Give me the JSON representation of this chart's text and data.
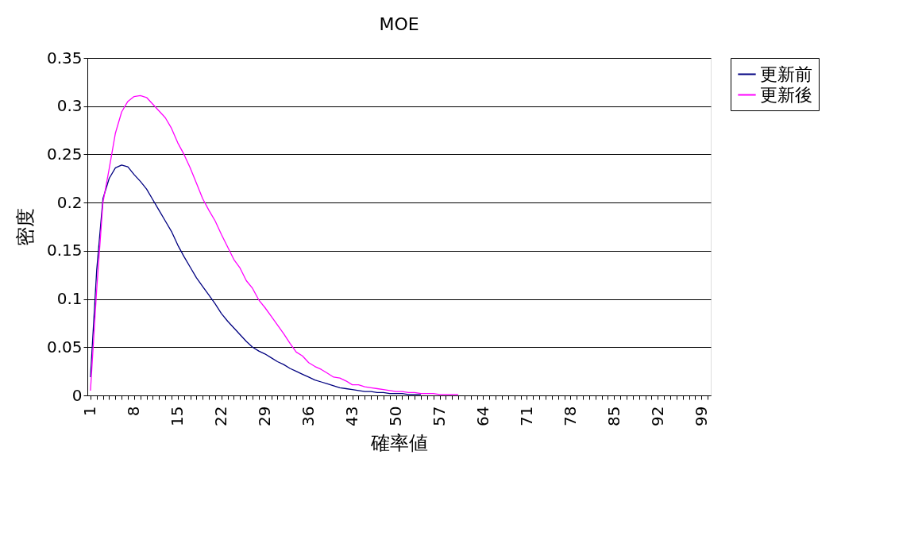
{
  "chart_data": {
    "type": "line",
    "title": "MOE",
    "xlabel": "確率値",
    "ylabel": "密度",
    "categories": [
      "1",
      null,
      null,
      null,
      null,
      null,
      null,
      "8",
      null,
      null,
      null,
      null,
      null,
      null,
      "15",
      null,
      null,
      null,
      null,
      null,
      null,
      "22",
      null,
      null,
      null,
      null,
      null,
      null,
      "29",
      null,
      null,
      null,
      null,
      null,
      null,
      "36",
      null,
      null,
      null,
      null,
      null,
      null,
      "43",
      null,
      null,
      null,
      null,
      null,
      null,
      "50",
      null,
      null,
      null,
      null,
      null,
      null,
      "57",
      null,
      null,
      null,
      null,
      null,
      null,
      "64",
      null,
      null,
      null,
      null,
      null,
      null,
      "71",
      null,
      null,
      null,
      null,
      null,
      null,
      "78",
      null,
      null,
      null,
      null,
      null,
      null,
      "85",
      null,
      null,
      null,
      null,
      null,
      null,
      "92",
      null,
      null,
      null,
      null,
      null,
      null,
      "99",
      null
    ],
    "series": [
      {
        "name": "更新前",
        "color": "#000080",
        "values": [
          0.019,
          0.13,
          0.204,
          0.225,
          0.236,
          0.239,
          0.237,
          0.229,
          0.222,
          0.214,
          0.203,
          0.192,
          0.181,
          0.17,
          0.156,
          0.144,
          0.133,
          0.122,
          0.113,
          0.104,
          0.095,
          0.085,
          0.077,
          0.07,
          0.063,
          0.056,
          0.05,
          0.046,
          0.043,
          0.039,
          0.035,
          0.032,
          0.028,
          0.025,
          0.022,
          0.019,
          0.016,
          0.014,
          0.012,
          0.01,
          0.008,
          0.007,
          0.006,
          0.005,
          0.004,
          0.004,
          0.003,
          0.003,
          0.002,
          0.002,
          0.002,
          0.001,
          0.001,
          0.001,
          null,
          null,
          null,
          null,
          null,
          null,
          null,
          null,
          null,
          null,
          null,
          null,
          null,
          null,
          null,
          null,
          null,
          null,
          null,
          null,
          null,
          null,
          null,
          null,
          null,
          null,
          null,
          null,
          null,
          null,
          null,
          null,
          null,
          null,
          null,
          null,
          null,
          null,
          null,
          null,
          null,
          null,
          null,
          null,
          null,
          null
        ]
      },
      {
        "name": "更新後",
        "color": "#ff00ff",
        "values": [
          0.005,
          0.11,
          0.2,
          0.235,
          0.272,
          0.294,
          0.305,
          0.31,
          0.311,
          0.309,
          0.302,
          0.295,
          0.288,
          0.277,
          0.262,
          0.25,
          0.236,
          0.22,
          0.204,
          0.192,
          0.181,
          0.167,
          0.154,
          0.141,
          0.132,
          0.119,
          0.111,
          0.099,
          0.091,
          0.082,
          0.073,
          0.064,
          0.054,
          0.045,
          0.041,
          0.034,
          0.03,
          0.027,
          0.023,
          0.019,
          0.018,
          0.015,
          0.011,
          0.011,
          0.009,
          0.008,
          0.007,
          0.006,
          0.005,
          0.004,
          0.004,
          0.003,
          0.003,
          0.002,
          0.002,
          0.002,
          0.001,
          0.001,
          0.001,
          0.001,
          null,
          null,
          null,
          null,
          null,
          null,
          null,
          null,
          null,
          null,
          null,
          null,
          null,
          null,
          null,
          null,
          null,
          null,
          null,
          null,
          null,
          null,
          null,
          null,
          null,
          null,
          null,
          null,
          null,
          null,
          null,
          null,
          null,
          null,
          null,
          null,
          null,
          null,
          null,
          null
        ]
      }
    ],
    "ylim": [
      0,
      0.35
    ],
    "yticks": [
      0,
      0.05,
      0.1,
      0.15,
      0.2,
      0.25,
      0.3,
      0.35
    ],
    "grid": "y",
    "legend": "right",
    "line_style": "solid"
  }
}
